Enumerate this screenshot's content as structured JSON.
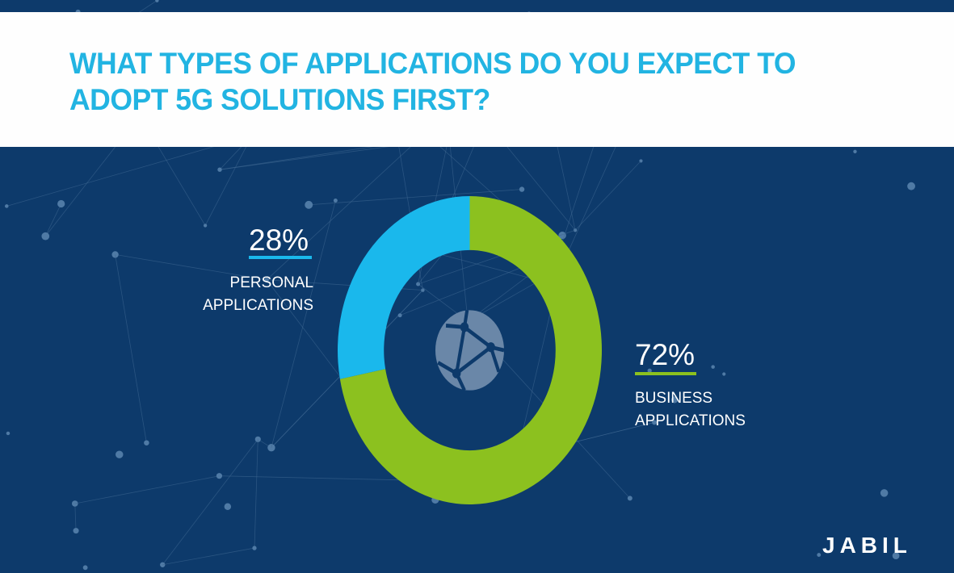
{
  "title": "WHAT TYPES OF APPLICATIONS DO YOU EXPECT TO ADOPT 5G SOLUTIONS FIRST?",
  "title_lines": [
    "WHAT TYPES OF APPLICATIONS DO YOU EXPECT TO",
    "ADOPT 5G SOLUTIONS FIRST?"
  ],
  "chart_data": {
    "type": "pie",
    "style": "donut",
    "title": "WHAT TYPES OF APPLICATIONS DO YOU EXPECT TO ADOPT 5G SOLUTIONS FIRST?",
    "categories": [
      "PERSONAL APPLICATIONS",
      "BUSINESS APPLICATIONS"
    ],
    "values": [
      28,
      72
    ],
    "labels": [
      "28%",
      "72%"
    ],
    "colors": [
      "#1ab8ec",
      "#8cc11f"
    ],
    "center_icon": "globe-network-icon"
  },
  "labels": {
    "personal": {
      "pct": "28%",
      "line1": "PERSONAL",
      "line2": "APPLICATIONS"
    },
    "business": {
      "pct": "72%",
      "line1": "BUSINESS",
      "line2": "APPLICATIONS"
    }
  },
  "brand": {
    "logo": "JABIL"
  },
  "colors": {
    "background": "#0d3a6b",
    "title": "#22b4e2",
    "personal": "#1ab8ec",
    "business": "#8cc11f",
    "icon": "#6a87a8"
  }
}
